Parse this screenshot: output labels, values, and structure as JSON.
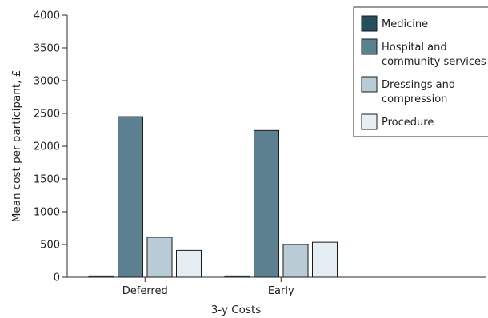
{
  "chart_data": {
    "type": "bar",
    "title": "",
    "xlabel": "3-y Costs",
    "ylabel": "Mean cost per participant, £",
    "ylim": [
      0,
      4000
    ],
    "yticks": [
      0,
      500,
      1000,
      1500,
      2000,
      2500,
      3000,
      3500,
      4000
    ],
    "ytick_labels": [
      "0",
      "500",
      "1000",
      "1500",
      "2000",
      "2500",
      "3000",
      "3500",
      "4000"
    ],
    "categories": [
      "Deferred",
      "Early"
    ],
    "series": [
      {
        "name": "Medicine",
        "values": [
          20,
          20
        ],
        "color": "#264e5c"
      },
      {
        "name": "Hospital and community services",
        "values": [
          2450,
          2240
        ],
        "color": "#5d8090"
      },
      {
        "name": "Dressings and compression",
        "values": [
          610,
          500
        ],
        "color": "#b9ccd6"
      },
      {
        "name": "Procedure",
        "values": [
          410,
          535
        ],
        "color": "#e5eef2"
      }
    ],
    "legend": {
      "position": "top-right",
      "entries": [
        [
          "Medicine"
        ],
        [
          "Hospital and",
          "community services"
        ],
        [
          "Dressings and",
          "compression"
        ],
        [
          "Procedure"
        ]
      ]
    },
    "grid": false
  }
}
